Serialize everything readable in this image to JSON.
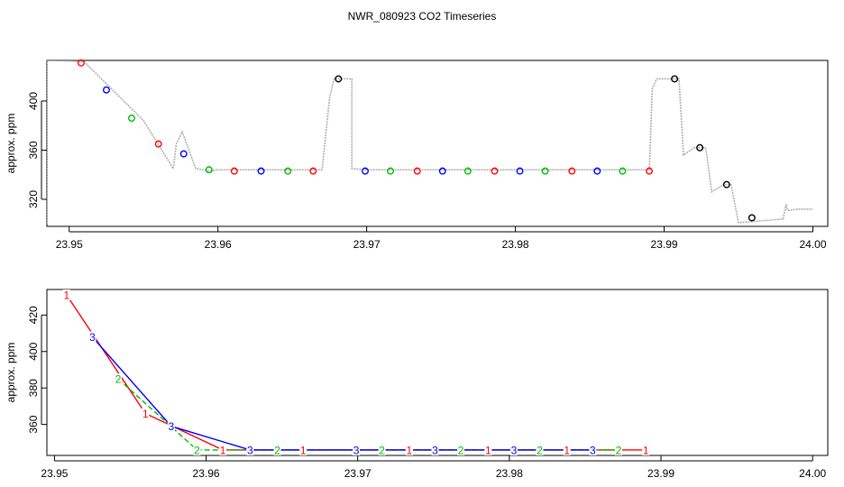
{
  "title": "NWR_080923  CO2 Timeseries",
  "colors": {
    "raw": "#b0b0b0",
    "series1": "#ff0000",
    "series2": "#00bb00",
    "series3": "#0000ff",
    "black": "#000000"
  },
  "chart_data": [
    {
      "type": "line",
      "ylabel": "approx. ppm",
      "xlim": [
        23.9485,
        24.001
      ],
      "ylim": [
        298,
        433
      ],
      "xticks": [
        "23.95",
        "23.96",
        "23.97",
        "23.98",
        "23.99",
        "24.00"
      ],
      "xtick_values": [
        23.95,
        23.96,
        23.97,
        23.98,
        23.99,
        24.0
      ],
      "yticks": [
        "320",
        "360",
        "400"
      ],
      "ytick_values": [
        320,
        360,
        400
      ],
      "raw_trace": {
        "x": [
          23.9485,
          23.9485,
          23.949,
          23.951,
          23.953,
          23.955,
          23.957,
          23.9572,
          23.9576,
          23.9585,
          23.9595,
          23.96,
          23.967,
          23.9675,
          23.9678,
          23.969,
          23.969,
          23.97,
          23.989,
          23.9892,
          23.9895,
          23.991,
          23.9913,
          23.992,
          23.9928,
          23.9932,
          23.994,
          23.9945,
          23.995,
          23.998,
          23.9982,
          23.9983,
          23.999,
          24.0
        ],
        "y": [
          300,
          433,
          433,
          432,
          408,
          384,
          345,
          365,
          375,
          345,
          343,
          344,
          344,
          402,
          418,
          418,
          345,
          344,
          344,
          410,
          418,
          418,
          356,
          362,
          362,
          326,
          332,
          332,
          301,
          304,
          316,
          311,
          312,
          312
        ]
      },
      "points": [
        {
          "x": 23.9508,
          "y": 431,
          "series": 1
        },
        {
          "x": 23.9525,
          "y": 409,
          "series": 3
        },
        {
          "x": 23.9542,
          "y": 386,
          "series": 2
        },
        {
          "x": 23.956,
          "y": 365,
          "series": 1
        },
        {
          "x": 23.9577,
          "y": 357,
          "series": 3
        },
        {
          "x": 23.9594,
          "y": 344,
          "series": 2
        },
        {
          "x": 23.9611,
          "y": 343,
          "series": 1
        },
        {
          "x": 23.9629,
          "y": 343,
          "series": 3
        },
        {
          "x": 23.9647,
          "y": 343,
          "series": 2
        },
        {
          "x": 23.9664,
          "y": 343,
          "series": 1
        },
        {
          "x": 23.9681,
          "y": 418,
          "series": 0
        },
        {
          "x": 23.9699,
          "y": 343,
          "series": 3
        },
        {
          "x": 23.9716,
          "y": 343,
          "series": 2
        },
        {
          "x": 23.9734,
          "y": 343,
          "series": 1
        },
        {
          "x": 23.9751,
          "y": 343,
          "series": 3
        },
        {
          "x": 23.9768,
          "y": 343,
          "series": 2
        },
        {
          "x": 23.9786,
          "y": 343,
          "series": 1
        },
        {
          "x": 23.9803,
          "y": 343,
          "series": 3
        },
        {
          "x": 23.982,
          "y": 343,
          "series": 2
        },
        {
          "x": 23.9838,
          "y": 343,
          "series": 1
        },
        {
          "x": 23.9855,
          "y": 343,
          "series": 3
        },
        {
          "x": 23.9872,
          "y": 343,
          "series": 2
        },
        {
          "x": 23.989,
          "y": 343,
          "series": 1
        },
        {
          "x": 23.9907,
          "y": 418,
          "series": 0
        },
        {
          "x": 23.9924,
          "y": 362,
          "series": 0
        },
        {
          "x": 23.9942,
          "y": 332,
          "series": 0
        },
        {
          "x": 23.9959,
          "y": 305,
          "series": 0
        }
      ]
    },
    {
      "type": "line",
      "ylabel": "approx. ppm",
      "xlim": [
        23.9495,
        24.001
      ],
      "ylim": [
        343,
        434
      ],
      "xticks": [
        "23.95",
        "23.96",
        "23.97",
        "23.98",
        "23.99",
        "24.00"
      ],
      "xtick_values": [
        23.95,
        23.96,
        23.97,
        23.98,
        23.99,
        24.0
      ],
      "yticks": [
        "360",
        "380",
        "400",
        "420"
      ],
      "ytick_values": [
        360,
        380,
        400,
        420
      ],
      "series": [
        {
          "label": "1",
          "color": "series1",
          "x": [
            23.9508,
            23.956,
            23.9611,
            23.9664,
            23.9734,
            23.9786,
            23.9838,
            23.989
          ],
          "y": [
            431,
            366,
            346,
            346,
            346,
            346,
            346,
            346
          ]
        },
        {
          "label": "2",
          "color": "series2",
          "x": [
            23.9542,
            23.9594,
            23.9647,
            23.9716,
            23.9768,
            23.982,
            23.9872
          ],
          "y": [
            385,
            346,
            346,
            346,
            346,
            346,
            346
          ]
        },
        {
          "label": "3",
          "color": "series3",
          "x": [
            23.9525,
            23.9577,
            23.9629,
            23.9699,
            23.9751,
            23.9803,
            23.9855
          ],
          "y": [
            408,
            359,
            346,
            346,
            346,
            346,
            346
          ]
        }
      ]
    }
  ]
}
